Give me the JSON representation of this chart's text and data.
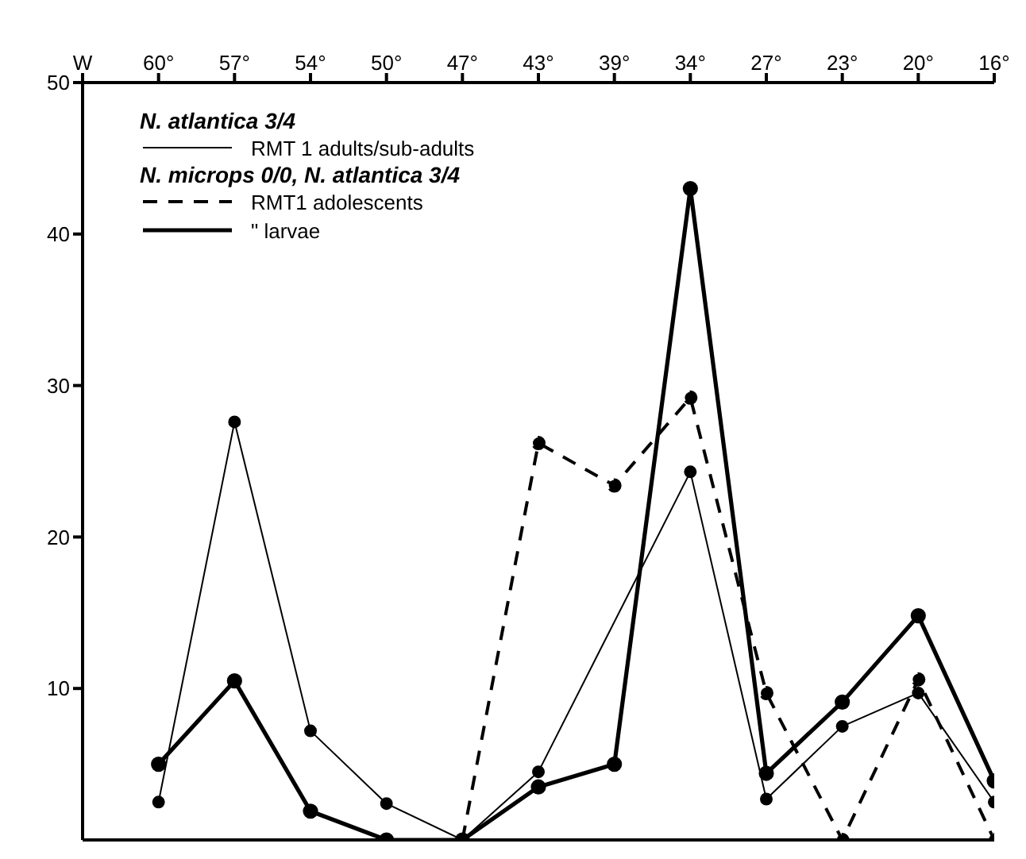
{
  "chart_data": {
    "type": "line",
    "categories": [
      "W",
      "60°",
      "57°",
      "54°",
      "50°",
      "47°",
      "43°",
      "39°",
      "34°",
      "27°",
      "23°",
      "20°",
      "16°"
    ],
    "series": [
      {
        "name": "RMT 1 adults/sub-adults",
        "color": "#000000",
        "line_style": "solid",
        "values": [
          null,
          2.5,
          27.6,
          7.2,
          2.4,
          0,
          4.5,
          null,
          24.3,
          2.7,
          7.5,
          9.7,
          2.5
        ]
      },
      {
        "name": "RMT1 adolescents",
        "color": "#000000",
        "line_style": "dashed",
        "values": [
          null,
          null,
          null,
          null,
          0,
          0,
          26.2,
          23.4,
          29.2,
          9.7,
          0,
          10.6,
          0
        ]
      },
      {
        "name": "\" larvae",
        "color": "#000000",
        "line_style": "solid",
        "values": [
          null,
          5,
          10.5,
          1.9,
          0,
          0,
          3.5,
          5,
          43,
          4.4,
          9.1,
          14.8,
          3.9
        ]
      }
    ],
    "legend_title": "N. atlantica 3/4",
    "annotations": [
      "N. microps 0/0, N. atlantica 3/4"
    ],
    "legend": "top left",
    "marker": "circle",
    "grid": false,
    "ylim": [
      0,
      50
    ],
    "yticks": [
      10,
      20,
      30,
      40,
      50
    ]
  }
}
